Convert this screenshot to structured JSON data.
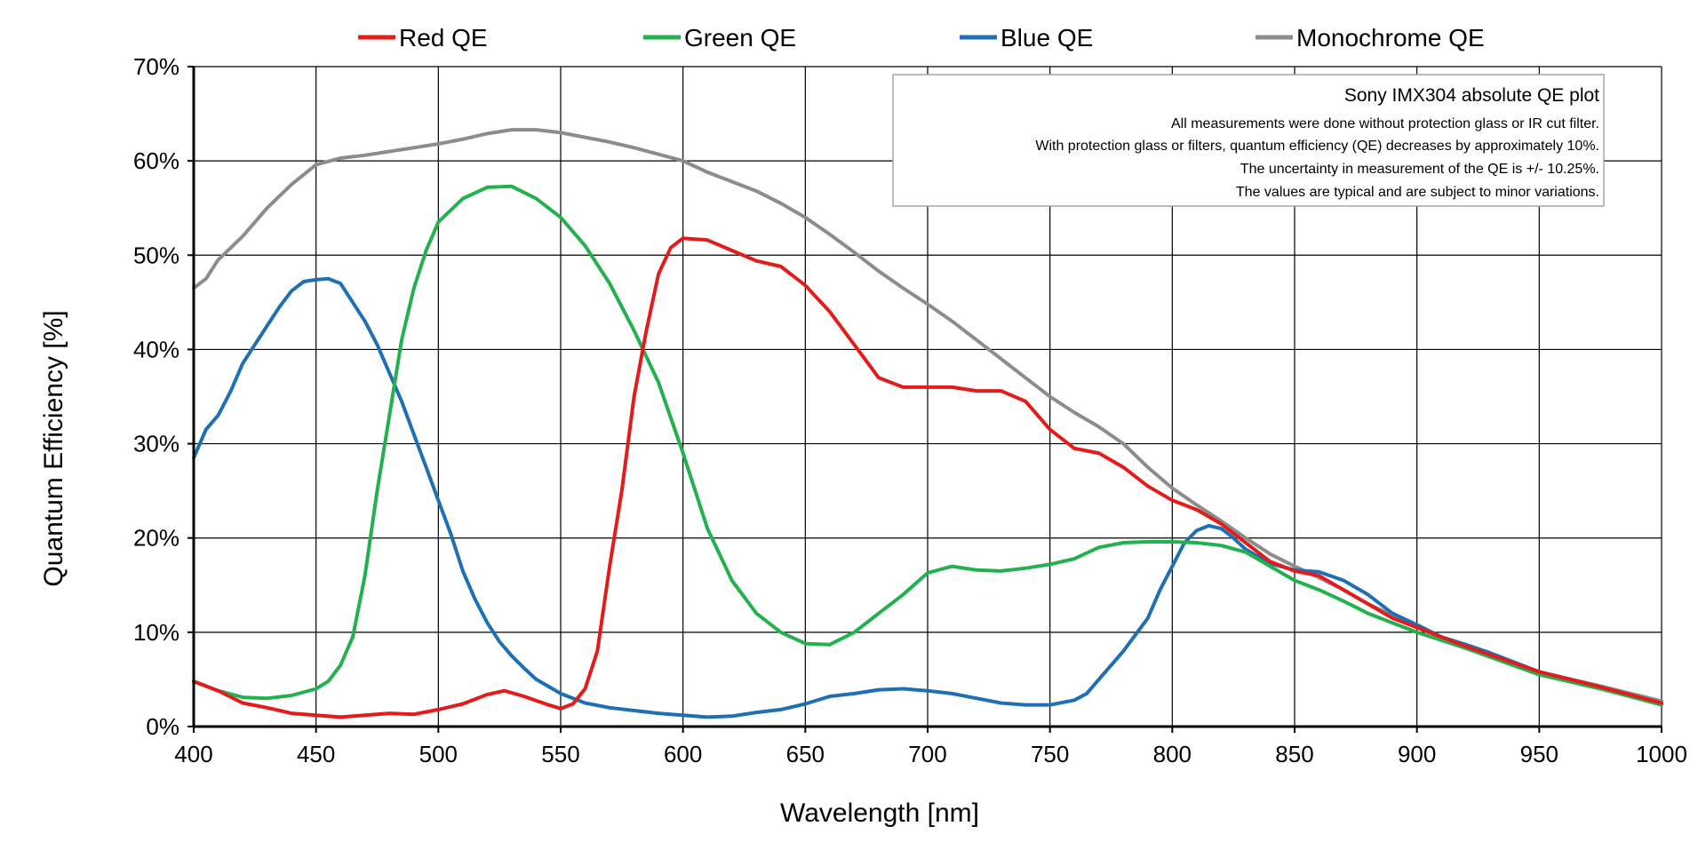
{
  "chart_data": {
    "type": "line",
    "xlabel": "Wavelength [nm]",
    "ylabel": "Quantum Efficiency [%]",
    "xlim": [
      400,
      1000
    ],
    "ylim": [
      0,
      70
    ],
    "x_ticks": [
      400,
      450,
      500,
      550,
      600,
      650,
      700,
      750,
      800,
      850,
      900,
      950,
      1000
    ],
    "y_ticks": [
      0,
      10,
      20,
      30,
      40,
      50,
      60,
      70
    ],
    "y_tick_labels": [
      "0%",
      "10%",
      "20%",
      "30%",
      "40%",
      "50%",
      "60%",
      "70%"
    ],
    "grid": true,
    "legend_position": "top",
    "annotation": {
      "title": "Sony IMX304 absolute QE plot",
      "lines": [
        "All measurements were done without protection glass or IR cut filter.",
        "With protection glass or filters, quantum efficiency (QE) decreases by approximately 10%.",
        "The uncertainty in measurement of the QE is +/- 10.25%.",
        "The values  are typical and are subject to minor variations."
      ]
    },
    "series": [
      {
        "name": "Red QE",
        "color": "#e31b1b",
        "points": [
          [
            400,
            4.8
          ],
          [
            410,
            3.8
          ],
          [
            420,
            2.5
          ],
          [
            430,
            2.0
          ],
          [
            440,
            1.4
          ],
          [
            450,
            1.2
          ],
          [
            460,
            1.0
          ],
          [
            470,
            1.2
          ],
          [
            480,
            1.4
          ],
          [
            490,
            1.3
          ],
          [
            500,
            1.8
          ],
          [
            510,
            2.4
          ],
          [
            520,
            3.4
          ],
          [
            527,
            3.8
          ],
          [
            535,
            3.2
          ],
          [
            545,
            2.3
          ],
          [
            550,
            1.9
          ],
          [
            555,
            2.4
          ],
          [
            560,
            4.0
          ],
          [
            565,
            8.0
          ],
          [
            570,
            17.0
          ],
          [
            575,
            25.0
          ],
          [
            580,
            35.0
          ],
          [
            585,
            42.0
          ],
          [
            590,
            48.0
          ],
          [
            595,
            50.8
          ],
          [
            600,
            51.8
          ],
          [
            610,
            51.6
          ],
          [
            620,
            50.5
          ],
          [
            630,
            49.4
          ],
          [
            640,
            48.8
          ],
          [
            650,
            46.8
          ],
          [
            660,
            44.0
          ],
          [
            670,
            40.5
          ],
          [
            680,
            37.0
          ],
          [
            690,
            36.0
          ],
          [
            700,
            36.0
          ],
          [
            710,
            36.0
          ],
          [
            720,
            35.6
          ],
          [
            730,
            35.6
          ],
          [
            740,
            34.5
          ],
          [
            750,
            31.5
          ],
          [
            760,
            29.5
          ],
          [
            770,
            29.0
          ],
          [
            780,
            27.5
          ],
          [
            790,
            25.5
          ],
          [
            800,
            24.0
          ],
          [
            810,
            23.0
          ],
          [
            820,
            21.5
          ],
          [
            830,
            19.5
          ],
          [
            840,
            17.5
          ],
          [
            850,
            16.5
          ],
          [
            860,
            16.0
          ],
          [
            870,
            14.5
          ],
          [
            880,
            13.0
          ],
          [
            890,
            11.5
          ],
          [
            900,
            10.5
          ],
          [
            920,
            8.5
          ],
          [
            950,
            5.8
          ],
          [
            975,
            4.2
          ],
          [
            1000,
            2.5
          ]
        ]
      },
      {
        "name": "Green QE",
        "color": "#22b14c",
        "points": [
          [
            400,
            4.8
          ],
          [
            410,
            3.8
          ],
          [
            420,
            3.1
          ],
          [
            430,
            3.0
          ],
          [
            440,
            3.3
          ],
          [
            450,
            4.0
          ],
          [
            455,
            4.8
          ],
          [
            460,
            6.5
          ],
          [
            465,
            9.5
          ],
          [
            470,
            16.0
          ],
          [
            475,
            25.0
          ],
          [
            480,
            33.0
          ],
          [
            485,
            41.0
          ],
          [
            490,
            46.5
          ],
          [
            495,
            50.5
          ],
          [
            500,
            53.5
          ],
          [
            510,
            56.0
          ],
          [
            520,
            57.2
          ],
          [
            530,
            57.3
          ],
          [
            540,
            56.0
          ],
          [
            550,
            54.0
          ],
          [
            560,
            51.0
          ],
          [
            570,
            47.0
          ],
          [
            580,
            42.0
          ],
          [
            590,
            36.5
          ],
          [
            600,
            29.0
          ],
          [
            610,
            21.0
          ],
          [
            620,
            15.5
          ],
          [
            630,
            12.0
          ],
          [
            640,
            10.0
          ],
          [
            650,
            8.8
          ],
          [
            660,
            8.7
          ],
          [
            670,
            10.0
          ],
          [
            680,
            12.0
          ],
          [
            690,
            14.0
          ],
          [
            700,
            16.3
          ],
          [
            710,
            17.0
          ],
          [
            720,
            16.6
          ],
          [
            730,
            16.5
          ],
          [
            740,
            16.8
          ],
          [
            750,
            17.2
          ],
          [
            760,
            17.8
          ],
          [
            770,
            19.0
          ],
          [
            780,
            19.5
          ],
          [
            790,
            19.6
          ],
          [
            800,
            19.6
          ],
          [
            810,
            19.5
          ],
          [
            820,
            19.2
          ],
          [
            830,
            18.5
          ],
          [
            840,
            17.0
          ],
          [
            850,
            15.5
          ],
          [
            860,
            14.5
          ],
          [
            870,
            13.3
          ],
          [
            880,
            12.0
          ],
          [
            890,
            11.0
          ],
          [
            900,
            10.0
          ],
          [
            920,
            8.3
          ],
          [
            950,
            5.5
          ],
          [
            975,
            4.0
          ],
          [
            1000,
            2.3
          ]
        ]
      },
      {
        "name": "Blue QE",
        "color": "#1f6fb5",
        "points": [
          [
            400,
            28.5
          ],
          [
            405,
            31.5
          ],
          [
            410,
            33.0
          ],
          [
            415,
            35.5
          ],
          [
            420,
            38.5
          ],
          [
            425,
            40.5
          ],
          [
            430,
            42.5
          ],
          [
            435,
            44.5
          ],
          [
            440,
            46.2
          ],
          [
            445,
            47.2
          ],
          [
            450,
            47.4
          ],
          [
            455,
            47.5
          ],
          [
            460,
            47.0
          ],
          [
            465,
            45.0
          ],
          [
            470,
            43.0
          ],
          [
            475,
            40.5
          ],
          [
            480,
            37.5
          ],
          [
            485,
            34.5
          ],
          [
            490,
            31.0
          ],
          [
            495,
            27.5
          ],
          [
            500,
            24.0
          ],
          [
            505,
            20.5
          ],
          [
            510,
            16.5
          ],
          [
            515,
            13.5
          ],
          [
            520,
            11.0
          ],
          [
            525,
            9.0
          ],
          [
            530,
            7.5
          ],
          [
            535,
            6.2
          ],
          [
            540,
            5.0
          ],
          [
            550,
            3.5
          ],
          [
            560,
            2.5
          ],
          [
            570,
            2.0
          ],
          [
            580,
            1.7
          ],
          [
            590,
            1.4
          ],
          [
            600,
            1.2
          ],
          [
            610,
            1.0
          ],
          [
            620,
            1.1
          ],
          [
            630,
            1.5
          ],
          [
            640,
            1.8
          ],
          [
            650,
            2.4
          ],
          [
            660,
            3.2
          ],
          [
            670,
            3.5
          ],
          [
            680,
            3.9
          ],
          [
            690,
            4.0
          ],
          [
            700,
            3.8
          ],
          [
            710,
            3.5
          ],
          [
            720,
            3.0
          ],
          [
            730,
            2.5
          ],
          [
            740,
            2.3
          ],
          [
            750,
            2.3
          ],
          [
            760,
            2.8
          ],
          [
            765,
            3.5
          ],
          [
            770,
            5.0
          ],
          [
            780,
            8.0
          ],
          [
            790,
            11.5
          ],
          [
            795,
            14.5
          ],
          [
            800,
            17.0
          ],
          [
            805,
            19.5
          ],
          [
            810,
            20.8
          ],
          [
            815,
            21.3
          ],
          [
            820,
            21.0
          ],
          [
            825,
            20.0
          ],
          [
            830,
            18.8
          ],
          [
            840,
            17.3
          ],
          [
            850,
            16.6
          ],
          [
            860,
            16.4
          ],
          [
            870,
            15.5
          ],
          [
            880,
            14.0
          ],
          [
            890,
            12.0
          ],
          [
            900,
            10.8
          ],
          [
            910,
            9.5
          ],
          [
            920,
            8.7
          ],
          [
            930,
            7.8
          ],
          [
            950,
            5.8
          ],
          [
            975,
            4.2
          ],
          [
            1000,
            2.4
          ]
        ]
      },
      {
        "name": "Monochrome QE",
        "color": "#8c8c8c",
        "points": [
          [
            400,
            46.5
          ],
          [
            405,
            47.5
          ],
          [
            410,
            49.5
          ],
          [
            420,
            52.0
          ],
          [
            430,
            55.0
          ],
          [
            440,
            57.5
          ],
          [
            450,
            59.6
          ],
          [
            460,
            60.3
          ],
          [
            470,
            60.6
          ],
          [
            480,
            61.0
          ],
          [
            490,
            61.4
          ],
          [
            500,
            61.8
          ],
          [
            510,
            62.3
          ],
          [
            520,
            62.9
          ],
          [
            530,
            63.3
          ],
          [
            540,
            63.3
          ],
          [
            550,
            63.0
          ],
          [
            560,
            62.5
          ],
          [
            570,
            62.0
          ],
          [
            580,
            61.4
          ],
          [
            590,
            60.7
          ],
          [
            600,
            60.0
          ],
          [
            610,
            58.8
          ],
          [
            620,
            57.8
          ],
          [
            630,
            56.8
          ],
          [
            640,
            55.5
          ],
          [
            650,
            54.0
          ],
          [
            660,
            52.2
          ],
          [
            670,
            50.3
          ],
          [
            680,
            48.3
          ],
          [
            690,
            46.5
          ],
          [
            700,
            44.8
          ],
          [
            710,
            43.0
          ],
          [
            720,
            41.0
          ],
          [
            730,
            39.0
          ],
          [
            740,
            37.0
          ],
          [
            750,
            35.0
          ],
          [
            760,
            33.3
          ],
          [
            770,
            31.8
          ],
          [
            780,
            30.0
          ],
          [
            790,
            27.5
          ],
          [
            800,
            25.3
          ],
          [
            810,
            23.5
          ],
          [
            820,
            21.8
          ],
          [
            830,
            20.0
          ],
          [
            840,
            18.3
          ],
          [
            850,
            17.0
          ],
          [
            860,
            15.8
          ],
          [
            870,
            14.5
          ],
          [
            880,
            13.0
          ],
          [
            890,
            11.8
          ],
          [
            900,
            10.5
          ],
          [
            920,
            8.5
          ],
          [
            950,
            5.8
          ],
          [
            975,
            4.3
          ],
          [
            1000,
            2.7
          ]
        ]
      }
    ]
  }
}
